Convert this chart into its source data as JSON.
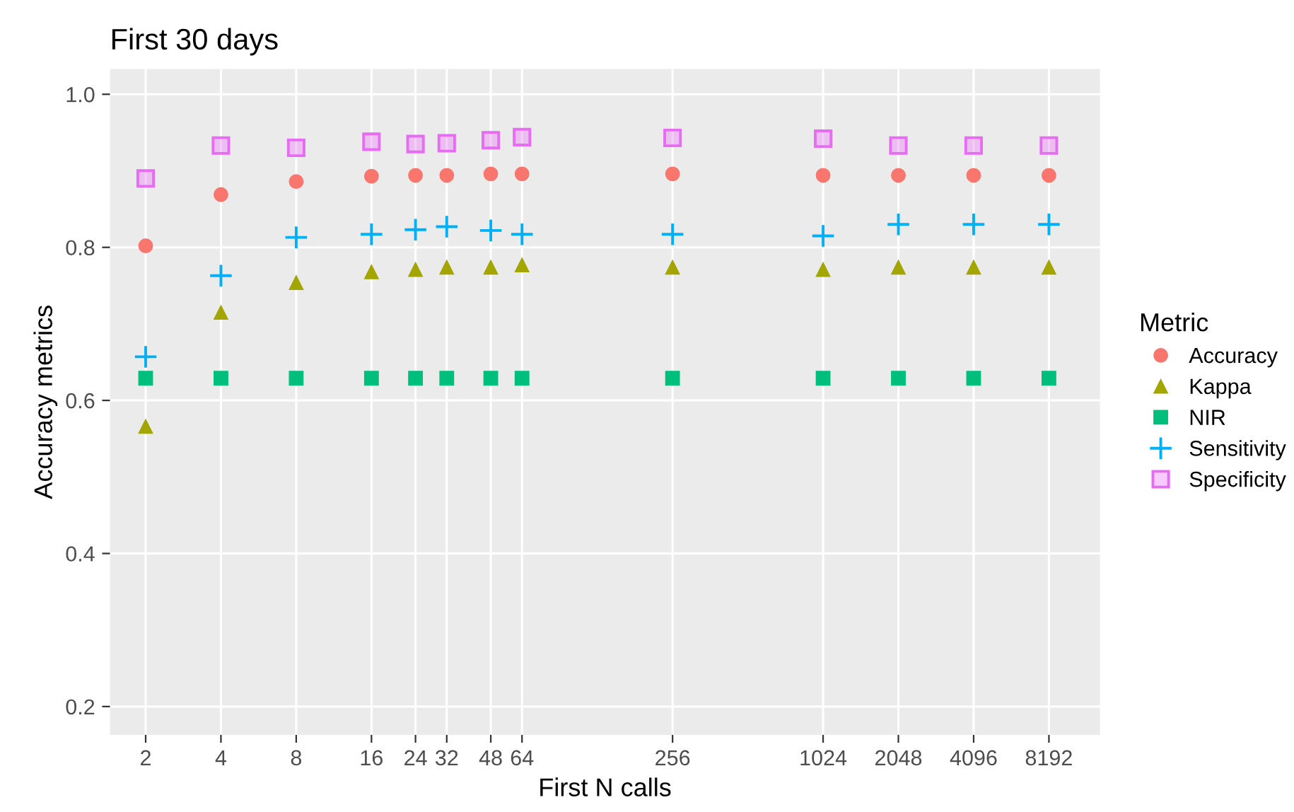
{
  "chart_data": {
    "type": "scatter",
    "title": "First 30 days",
    "xlabel": "First N calls",
    "ylabel": "Accuracy metrics",
    "legend_title": "Metric",
    "legend": "right",
    "grid": true,
    "log": "x",
    "x": [
      2,
      4,
      8,
      16,
      24,
      32,
      48,
      64,
      256,
      1024,
      2048,
      4096,
      8192
    ],
    "xlim": [
      1.44,
      13100
    ],
    "xticks": [
      2,
      4,
      8,
      16,
      24,
      32,
      48,
      64,
      256,
      1024,
      2048,
      4096,
      8192
    ],
    "ylim": [
      0.163,
      1.033
    ],
    "yticks": [
      0.2,
      0.4,
      0.6,
      0.8,
      {
        "value": 1.0,
        "label": "1.0"
      }
    ],
    "series": [
      {
        "name": "Accuracy",
        "color": "#f8766d",
        "marker": "circle",
        "values": [
          0.802,
          0.869,
          0.886,
          0.893,
          0.894,
          0.894,
          0.896,
          0.896,
          0.896,
          0.894,
          0.894,
          0.894,
          0.894
        ]
      },
      {
        "name": "Kappa",
        "color": "#a3a500",
        "marker": "triangle",
        "values": [
          0.566,
          0.715,
          0.754,
          0.768,
          0.771,
          0.774,
          0.774,
          0.777,
          0.774,
          0.771,
          0.774,
          0.774,
          0.774
        ]
      },
      {
        "name": "NIR",
        "color": "#00bf7d",
        "marker": "square",
        "values": [
          0.629,
          0.629,
          0.629,
          0.629,
          0.629,
          0.629,
          0.629,
          0.629,
          0.629,
          0.629,
          0.629,
          0.629,
          0.629
        ]
      },
      {
        "name": "Sensitivity",
        "color": "#00b0f6",
        "marker": "cross",
        "values": [
          0.657,
          0.763,
          0.813,
          0.817,
          0.823,
          0.827,
          0.822,
          0.817,
          0.817,
          0.815,
          0.83,
          0.83,
          0.83
        ]
      },
      {
        "name": "Specificity",
        "color": "#e76bf3",
        "marker": "square",
        "values": [
          0.89,
          0.933,
          0.93,
          0.938,
          0.935,
          0.936,
          0.94,
          0.944,
          0.943,
          0.942,
          0.933,
          0.933,
          0.933
        ]
      }
    ]
  }
}
